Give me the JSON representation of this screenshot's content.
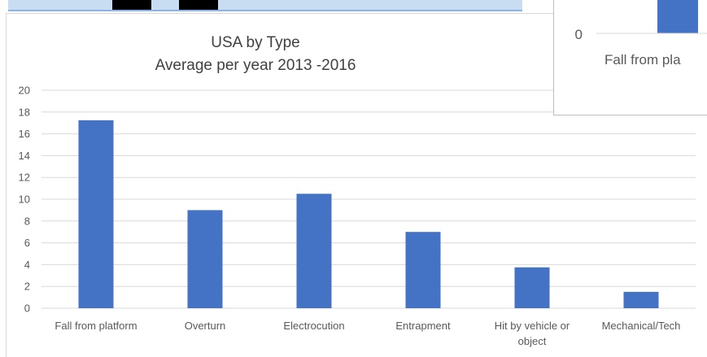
{
  "chart_data": {
    "type": "bar",
    "title": "USA by Type",
    "subtitle": "Average per year 2013 -2016",
    "xlabel": "",
    "ylabel": "",
    "categories": [
      "Fall from platform",
      "Overturn",
      "Electrocution",
      "Entrapment",
      "Hit by vehicle or object",
      "Mechanical/Tech"
    ],
    "category_lines": [
      [
        "Fall from platform"
      ],
      [
        "Overturn"
      ],
      [
        "Electrocution"
      ],
      [
        "Entrapment"
      ],
      [
        "Hit by vehicle or",
        "object"
      ],
      [
        "Mechanical/Tech"
      ]
    ],
    "values": [
      17.25,
      9.0,
      10.5,
      7.0,
      3.75,
      1.5
    ],
    "ylim": [
      0,
      20
    ],
    "yticks": [
      0,
      2,
      4,
      6,
      8,
      10,
      12,
      14,
      16,
      18,
      20
    ],
    "grid": true,
    "legend": "none",
    "bar_color": "#4472c4",
    "grid_color": "#d9d9d9"
  },
  "overlay": {
    "axis_tick": "0",
    "category_label": "Fall from pla",
    "bar_color": "#4472c4"
  }
}
